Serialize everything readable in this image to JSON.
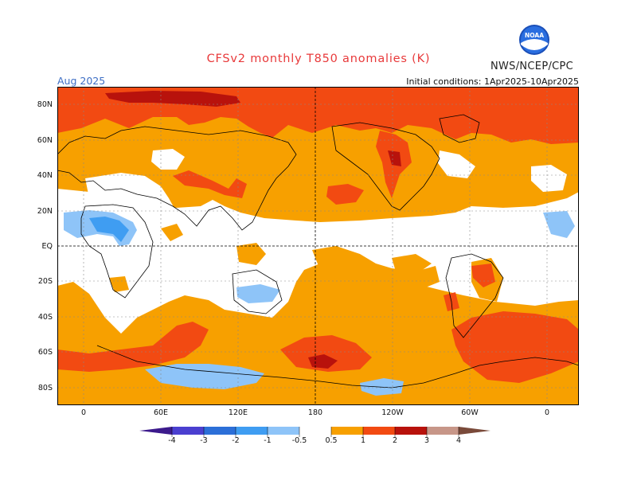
{
  "header": {
    "title": "CFSv2 monthly T850 anomalies (K)",
    "agency": "NWS/NCEP/CPC",
    "logo_text": "NOAA",
    "period": "Aug 2025",
    "initial_conditions": "Initial conditions: 1Apr2025-10Apr2025"
  },
  "axes": {
    "lat_labels": [
      "80N",
      "60N",
      "40N",
      "20N",
      "EQ",
      "20S",
      "40S",
      "60S",
      "80S"
    ],
    "lon_labels": [
      "0",
      "60E",
      "120E",
      "180",
      "120W",
      "60W",
      "0"
    ]
  },
  "colorbar": {
    "labels": [
      "-4",
      "-3",
      "-2",
      "-1",
      "-0.5",
      "0.5",
      "1",
      "2",
      "3",
      "4"
    ],
    "colors": {
      "lt-4": "#3c1a8c",
      "-4to-3": "#4a3fd0",
      "-3to-2": "#2c6fd8",
      "-2to-1": "#3f9df2",
      "-1to-0.5": "#8ec4f8",
      "-0.5to0.5": "#ffffff",
      "0.5to1": "#f7a000",
      "1to2": "#f24a12",
      "2to3": "#b8120c",
      "3to4": "#c79688",
      "gt4": "#7a4a3a"
    }
  },
  "legend_colors": {
    "warm1": "#f7a000",
    "warm2": "#f24a12",
    "warm3": "#b8120c",
    "cool1": "#8ec4f8",
    "cool2": "#3f9df2"
  }
}
